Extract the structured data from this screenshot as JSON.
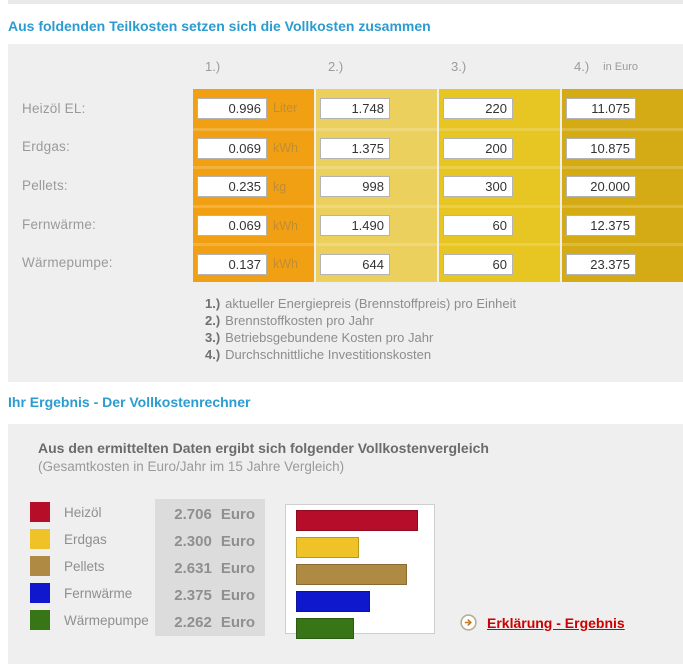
{
  "page": {
    "section1_title": "Aus foldenden Teilkosten setzen sich die Vollkosten zusammen",
    "section2_title": "Ihr Ergebnis - Der Vollkostenrechner"
  },
  "table": {
    "col_headers": [
      "1.)",
      "2.)",
      "3.)",
      "4.)"
    ],
    "col4_suffix": "in Euro",
    "rows": [
      {
        "label": "Heizöl EL:",
        "price": "0.996",
        "unit": "Liter",
        "fuel_cost": "1.748",
        "operating_cost": "220",
        "investment": "11.075"
      },
      {
        "label": "Erdgas:",
        "price": "0.069",
        "unit": "kWh",
        "fuel_cost": "1.375",
        "operating_cost": "200",
        "investment": "10.875"
      },
      {
        "label": "Pellets:",
        "price": "0.235",
        "unit": "kg",
        "fuel_cost": "998",
        "operating_cost": "300",
        "investment": "20.000"
      },
      {
        "label": "Fernwärme:",
        "price": "0.069",
        "unit": "kWh",
        "fuel_cost": "1.490",
        "operating_cost": "60",
        "investment": "12.375"
      },
      {
        "label": "Wärmepumpe:",
        "price": "0.137",
        "unit": "kWh",
        "fuel_cost": "644",
        "operating_cost": "60",
        "investment": "23.375"
      }
    ],
    "footnotes": [
      {
        "marker": "1.)",
        "text": "aktueller Energiepreis (Brennstoffpreis) pro Einheit"
      },
      {
        "marker": "2.)",
        "text": "Brennstoffkosten pro Jahr"
      },
      {
        "marker": "3.)",
        "text": "Betriebsgebundene Kosten pro Jahr"
      },
      {
        "marker": "4.)",
        "text": "Durchschnittliche Investitionskosten"
      }
    ]
  },
  "results": {
    "intro_bold": "Aus den ermittelten Daten ergibt sich folgender Vollkostenvergleich",
    "intro_sub": "(Gesamtkosten in Euro/Jahr im 15 Jahre Vergleich)",
    "rows": [
      {
        "label": "Heizöl",
        "amount": "2.706",
        "currency": "Euro"
      },
      {
        "label": "Erdgas",
        "amount": "2.300",
        "currency": "Euro"
      },
      {
        "label": "Pellets",
        "amount": "2.631",
        "currency": "Euro"
      },
      {
        "label": "Fernwärme",
        "amount": "2.375",
        "currency": "Euro"
      },
      {
        "label": "Wärmepumpe",
        "amount": "2.262",
        "currency": "Euro"
      }
    ],
    "link_label": "Erklärung - Ergebnis"
  },
  "chart_data": {
    "type": "bar",
    "orientation": "horizontal",
    "title": "Aus den ermittelten Daten ergibt sich folgender Vollkostenvergleich",
    "subtitle": "(Gesamtkosten in Euro/Jahr im 15 Jahre Vergleich)",
    "categories": [
      "Heizöl",
      "Erdgas",
      "Pellets",
      "Fernwärme",
      "Wärmepumpe"
    ],
    "values": [
      2706,
      2300,
      2631,
      2375,
      2262
    ],
    "unit": "Euro/Jahr",
    "colors": [
      "#b60d2b",
      "#efc228",
      "#af8a42",
      "#1018ce",
      "#387517"
    ],
    "xlim": [
      1860,
      2820
    ],
    "grid": false,
    "legend_position": "left"
  },
  "colors": {
    "accent_blue": "#2b9cd0",
    "panel_gray": "#efefef",
    "col1_orange": "#f1a013",
    "col2_yellow": "#ebd05e",
    "col3_gold": "#e7c522",
    "col4_mustard": "#d4ab14",
    "values_box_gray": "#dcdcdc",
    "link_red": "#cc0000"
  }
}
